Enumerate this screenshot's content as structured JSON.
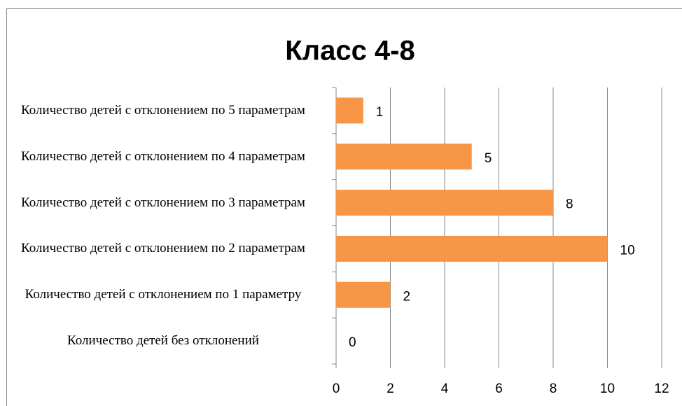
{
  "chart_data": {
    "type": "bar",
    "orientation": "horizontal",
    "title": "Класс 4-8",
    "categories": [
      "Количество детей без отклонений",
      "Количество детей с отклонением по 1 параметру",
      "Количество детей с отклонением по 2 параметрам",
      "Количество детей с отклонением по 3 параметрам",
      "Количество детей с отклонением по 4 параметрам",
      "Количество детей с отклонением по 5 параметрам"
    ],
    "values": [
      0,
      2,
      10,
      8,
      5,
      1
    ],
    "color": "#f79646",
    "xlim": [
      0,
      12
    ],
    "xticks": [
      0,
      2,
      4,
      6,
      8,
      10,
      12
    ],
    "grid": true
  }
}
